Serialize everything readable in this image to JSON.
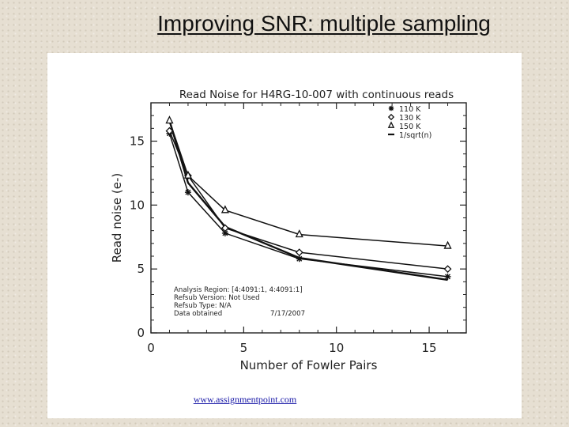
{
  "slide": {
    "title": "Improving SNR: multiple sampling",
    "footer_link": "www.assignmentpoint.com"
  },
  "chart_data": {
    "type": "line",
    "title": "Read Noise for H4RG-10-007 with continuous reads",
    "xlabel": "Number of Fowler Pairs",
    "ylabel": "Read noise (e-)",
    "xlim": [
      0,
      17
    ],
    "ylim": [
      0,
      18
    ],
    "xticks": [
      0,
      5,
      10,
      15
    ],
    "yticks": [
      0,
      5,
      10,
      15
    ],
    "x": [
      1,
      2,
      4,
      8,
      16
    ],
    "series": [
      {
        "name": "110 K",
        "marker": "asterisk",
        "values": [
          15.6,
          11.0,
          7.8,
          5.8,
          4.4
        ]
      },
      {
        "name": "130 K",
        "marker": "diamond",
        "values": [
          15.8,
          12.3,
          8.2,
          6.3,
          5.0
        ]
      },
      {
        "name": "150 K",
        "marker": "triangle",
        "values": [
          16.6,
          12.3,
          9.6,
          7.7,
          6.8
        ]
      },
      {
        "name": "1/sqrt(n)",
        "marker": "none",
        "values": [
          16.6,
          11.74,
          8.3,
          5.87,
          4.15
        ]
      }
    ],
    "legend_position": "top-right",
    "annotation_lines": [
      "Analysis Region: [4:4091:1, 4:4091:1]",
      "Refsub Version: Not Used",
      "Refsub Type: N/A",
      "Data obtained"
    ],
    "annotation_date": "7/17/2007",
    "grid": false
  }
}
